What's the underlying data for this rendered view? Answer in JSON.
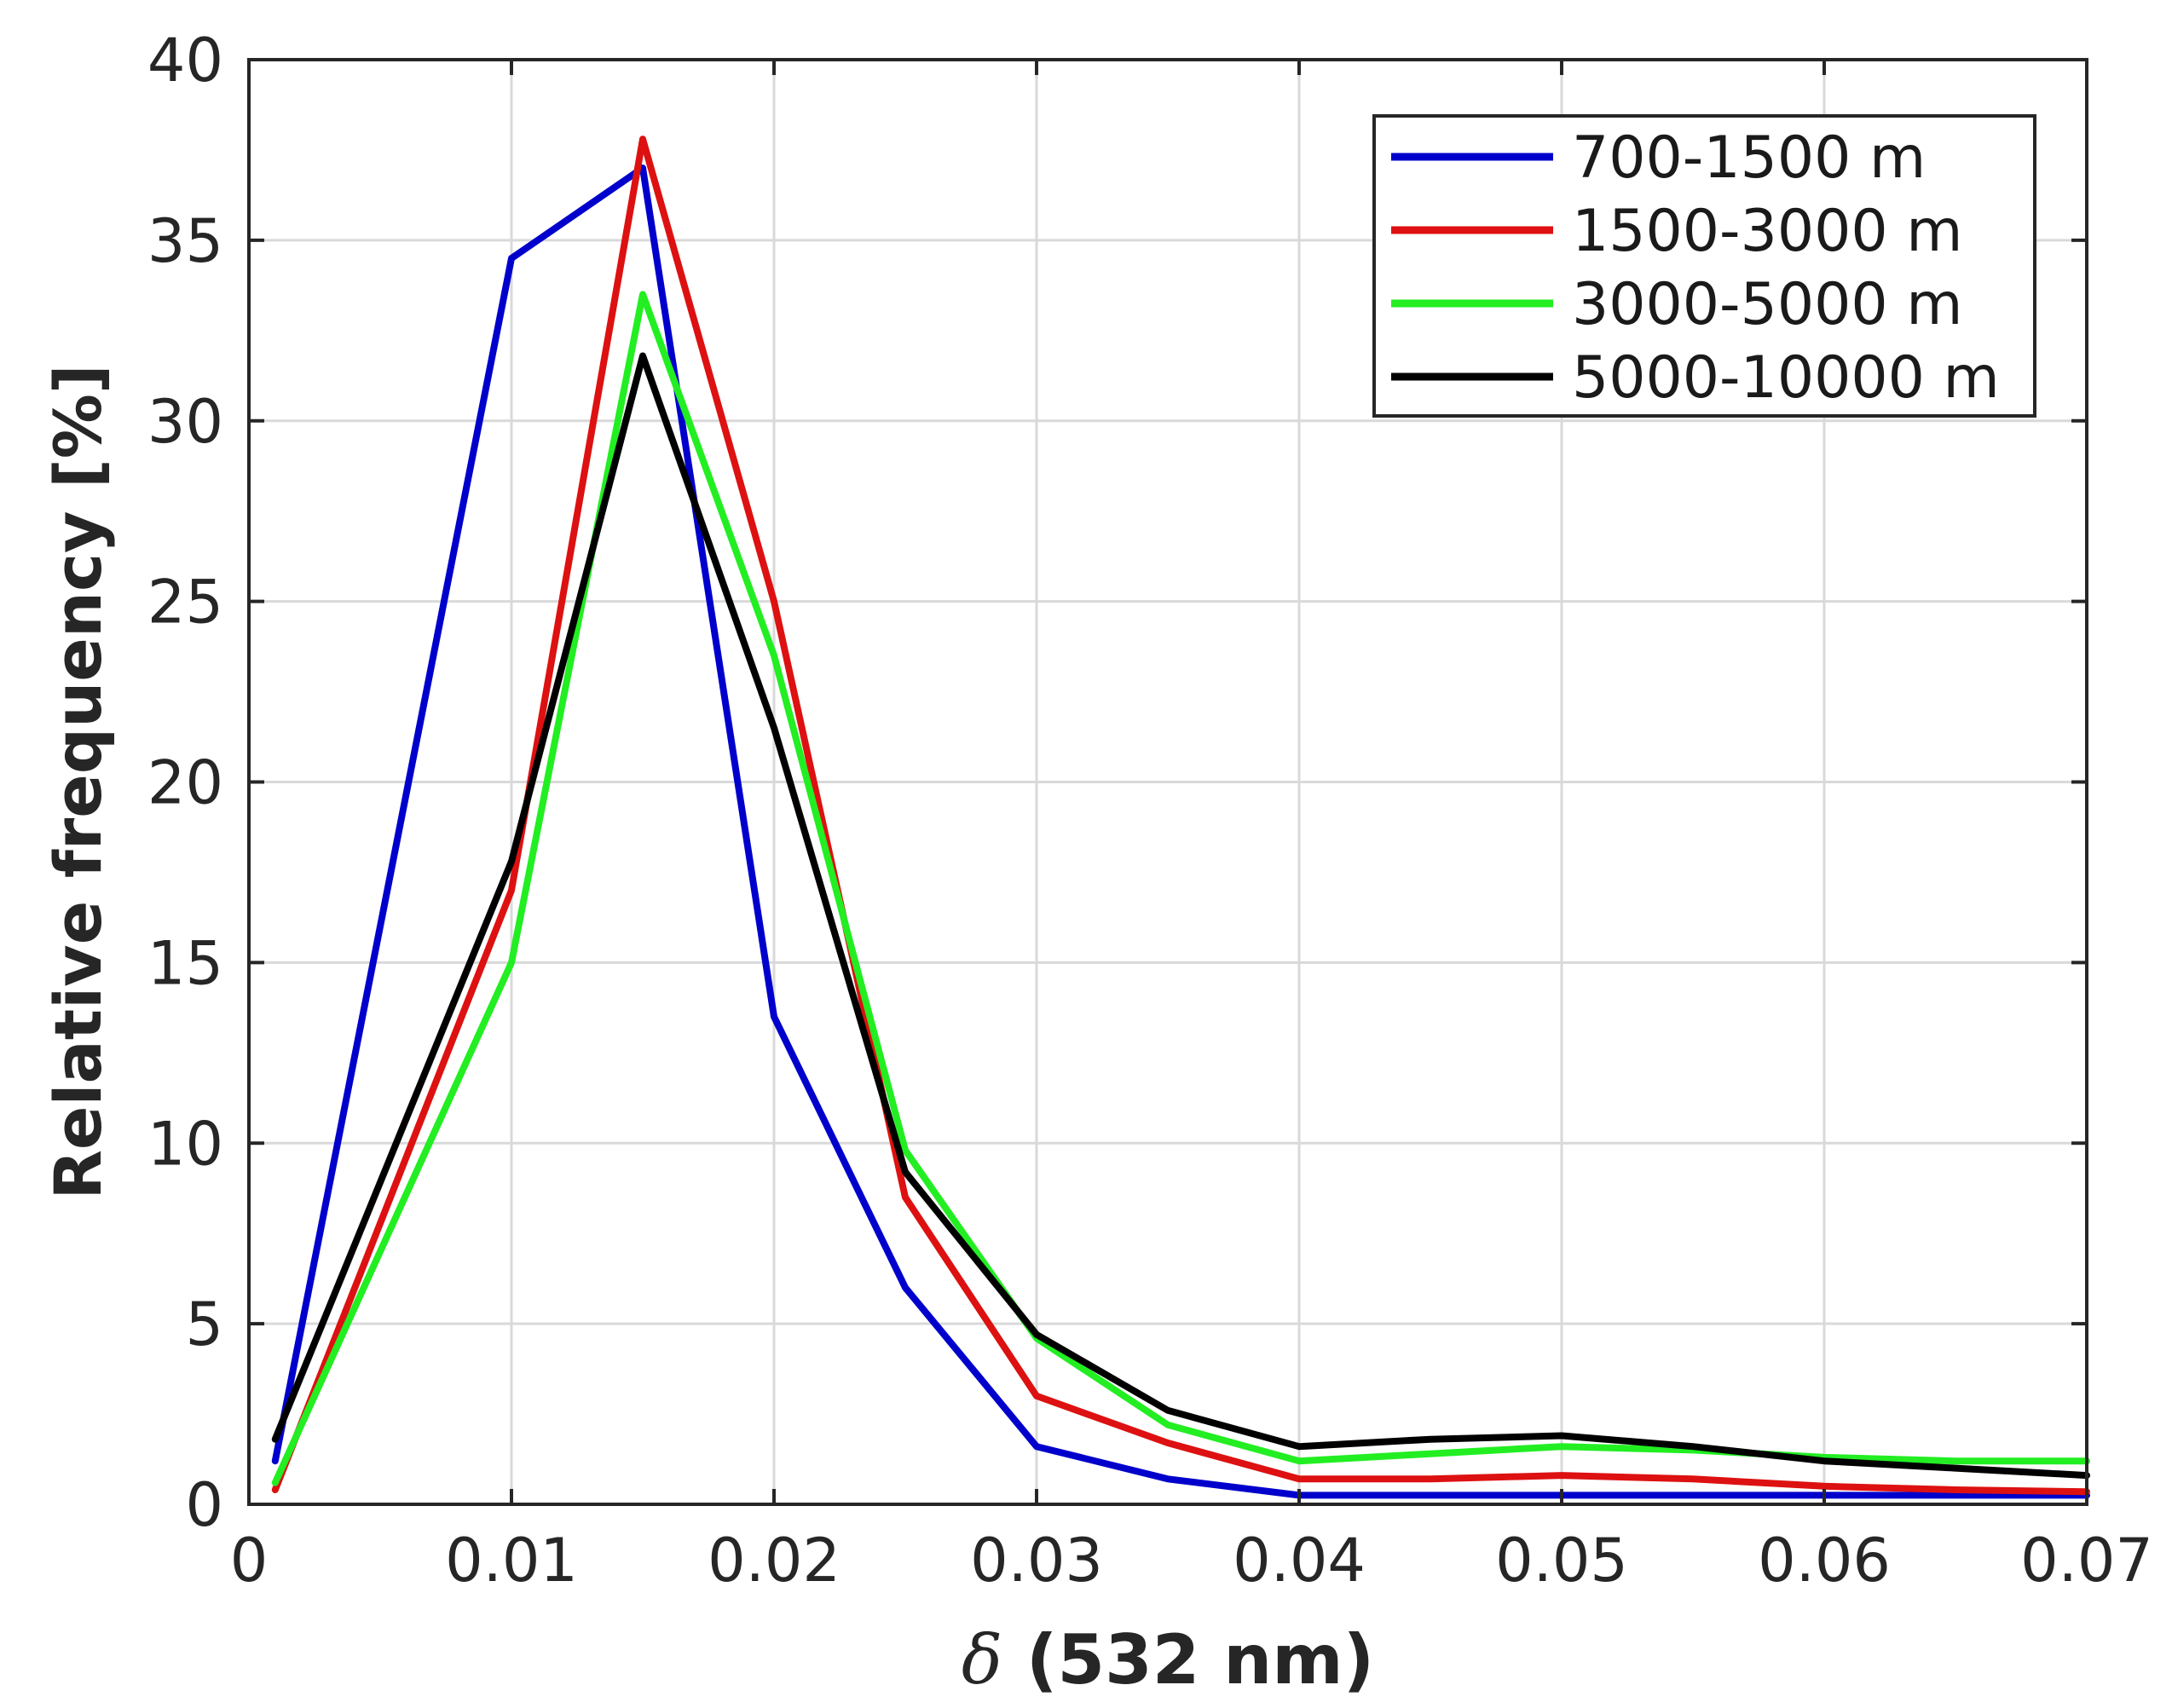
{
  "chart_data": {
    "type": "line",
    "title": "",
    "xlabel_symbol": "δ",
    "xlabel_rest": " (532 nm)",
    "ylabel": "Relative frequency [%]",
    "xlim": [
      0,
      0.07
    ],
    "ylim": [
      0,
      40
    ],
    "xticks": [
      0,
      0.01,
      0.02,
      0.03,
      0.04,
      0.05,
      0.06,
      0.07
    ],
    "xtick_labels": [
      "0",
      "0.01",
      "0.02",
      "0.03",
      "0.04",
      "0.05",
      "0.06",
      "0.07"
    ],
    "yticks": [
      0,
      5,
      10,
      15,
      20,
      25,
      30,
      35,
      40
    ],
    "ytick_labels": [
      "0",
      "5",
      "10",
      "15",
      "20",
      "25",
      "30",
      "35",
      "40"
    ],
    "grid": true,
    "legend_position": "top-right",
    "x": [
      0.001,
      0.01,
      0.015,
      0.02,
      0.025,
      0.03,
      0.035,
      0.04,
      0.045,
      0.05,
      0.055,
      0.06,
      0.065,
      0.07
    ],
    "series": [
      {
        "name": "700-1500 m",
        "color": "#0000cc",
        "values": [
          1.2,
          34.5,
          37.0,
          13.5,
          6.0,
          1.6,
          0.7,
          0.25,
          0.25,
          0.25,
          0.25,
          0.25,
          0.25,
          0.25
        ]
      },
      {
        "name": "1500-3000 m",
        "color": "#dd1111",
        "values": [
          0.4,
          17.0,
          37.8,
          25.0,
          8.5,
          3.0,
          1.7,
          0.7,
          0.7,
          0.8,
          0.7,
          0.5,
          0.4,
          0.35
        ]
      },
      {
        "name": "3000-5000 m",
        "color": "#22ee22",
        "values": [
          0.6,
          15.0,
          33.5,
          23.5,
          9.8,
          4.6,
          2.2,
          1.2,
          1.4,
          1.6,
          1.5,
          1.3,
          1.2,
          1.2
        ]
      },
      {
        "name": "5000-10000 m",
        "color": "#000000",
        "values": [
          1.8,
          17.8,
          31.8,
          21.5,
          9.2,
          4.7,
          2.6,
          1.6,
          1.8,
          1.9,
          1.6,
          1.2,
          1.0,
          0.8
        ]
      }
    ]
  }
}
